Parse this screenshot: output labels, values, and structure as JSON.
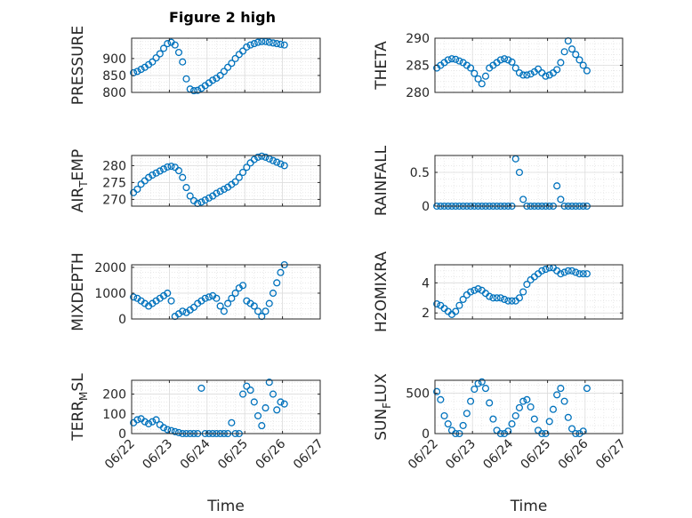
{
  "figure": {
    "title": "Figure 2 high"
  },
  "colors": {
    "marker": "#0072BD",
    "axis": "#262626",
    "grid": "#DCDCDC"
  },
  "chart_data": [
    {
      "type": "scatter",
      "id": "pressure",
      "ylabel": "PRESSURE",
      "ylim": [
        800,
        960
      ],
      "yticks": [
        800,
        850,
        900
      ],
      "ytick_labels": [
        "800",
        "850",
        "900"
      ],
      "xlim": [
        0,
        5
      ],
      "grid": true,
      "x": [
        0.05,
        0.15,
        0.25,
        0.35,
        0.45,
        0.55,
        0.65,
        0.75,
        0.85,
        0.95,
        1.05,
        1.15,
        1.25,
        1.35,
        1.45,
        1.55,
        1.65,
        1.75,
        1.85,
        1.95,
        2.05,
        2.15,
        2.25,
        2.35,
        2.45,
        2.55,
        2.65,
        2.75,
        2.85,
        2.95,
        3.05,
        3.15,
        3.25,
        3.35,
        3.45,
        3.55,
        3.65,
        3.75,
        3.85,
        3.95,
        4.05
      ],
      "y": [
        858,
        862,
        868,
        874,
        882,
        890,
        902,
        914,
        930,
        944,
        948,
        940,
        918,
        890,
        840,
        810,
        805,
        806,
        812,
        820,
        828,
        836,
        842,
        850,
        862,
        874,
        886,
        900,
        912,
        922,
        934,
        940,
        944,
        948,
        950,
        950,
        948,
        946,
        944,
        942,
        940
      ]
    },
    {
      "type": "scatter",
      "id": "theta",
      "ylabel": "THETA",
      "ylim": [
        280,
        290
      ],
      "yticks": [
        280,
        285,
        290
      ],
      "ytick_labels": [
        "280",
        "285",
        "290"
      ],
      "xlim": [
        0,
        5
      ],
      "grid": true,
      "x": [
        0.05,
        0.15,
        0.25,
        0.35,
        0.45,
        0.55,
        0.65,
        0.75,
        0.85,
        0.95,
        1.05,
        1.15,
        1.25,
        1.35,
        1.45,
        1.55,
        1.65,
        1.75,
        1.85,
        1.95,
        2.05,
        2.15,
        2.25,
        2.35,
        2.45,
        2.55,
        2.65,
        2.75,
        2.85,
        2.95,
        3.05,
        3.15,
        3.25,
        3.35,
        3.45,
        3.55,
        3.65,
        3.75,
        3.85,
        3.95,
        4.05
      ],
      "y": [
        284.5,
        285,
        285.5,
        286,
        286.2,
        286.1,
        285.8,
        285.5,
        285,
        284.5,
        283.5,
        282.5,
        281.6,
        283,
        284.5,
        285,
        285.5,
        286,
        286.2,
        286,
        285.6,
        284.5,
        283.6,
        283.2,
        283.2,
        283.4,
        283.8,
        284.3,
        283.6,
        283.0,
        283.2,
        283.6,
        284.2,
        285.5,
        287.5,
        289.5,
        288,
        287,
        286,
        285,
        284
      ]
    },
    {
      "type": "scatter",
      "id": "air-temp",
      "ylabel": "AIR_TEMP",
      "ylim": [
        268,
        283
      ],
      "yticks": [
        270,
        275,
        280
      ],
      "ytick_labels": [
        "270",
        "275",
        "280"
      ],
      "xlim": [
        0,
        5
      ],
      "grid": true,
      "x": [
        0.05,
        0.15,
        0.25,
        0.35,
        0.45,
        0.55,
        0.65,
        0.75,
        0.85,
        0.95,
        1.05,
        1.15,
        1.25,
        1.35,
        1.45,
        1.55,
        1.65,
        1.75,
        1.85,
        1.95,
        2.05,
        2.15,
        2.25,
        2.35,
        2.45,
        2.55,
        2.65,
        2.75,
        2.85,
        2.95,
        3.05,
        3.15,
        3.25,
        3.35,
        3.45,
        3.55,
        3.65,
        3.75,
        3.85,
        3.95,
        4.05
      ],
      "y": [
        272,
        273,
        274.5,
        275.5,
        276.5,
        277.2,
        277.8,
        278.4,
        279,
        279.6,
        279.8,
        279.5,
        278.5,
        276.5,
        273.5,
        271,
        269.6,
        268.8,
        269.2,
        269.8,
        270.4,
        271,
        271.8,
        272.4,
        273,
        273.6,
        274.4,
        275.2,
        276.5,
        278,
        279.5,
        280.8,
        281.8,
        282.5,
        282.8,
        282.5,
        282,
        281.5,
        281,
        280.5,
        280
      ]
    },
    {
      "type": "scatter",
      "id": "rainfall",
      "ylabel": "RAINFALL",
      "ylim": [
        0,
        0.75
      ],
      "yticks": [
        0,
        0.5
      ],
      "ytick_labels": [
        "0",
        "0.5"
      ],
      "xlim": [
        0,
        5
      ],
      "grid": true,
      "x": [
        0.05,
        0.15,
        0.25,
        0.35,
        0.45,
        0.55,
        0.65,
        0.75,
        0.85,
        0.95,
        1.05,
        1.15,
        1.25,
        1.35,
        1.45,
        1.55,
        1.65,
        1.75,
        1.85,
        1.95,
        2.05,
        2.15,
        2.25,
        2.35,
        2.45,
        2.55,
        2.65,
        2.75,
        2.85,
        2.95,
        3.05,
        3.15,
        3.25,
        3.35,
        3.45,
        3.55,
        3.65,
        3.75,
        3.85,
        3.95,
        4.05
      ],
      "y": [
        0,
        0,
        0,
        0,
        0,
        0,
        0,
        0,
        0,
        0,
        0,
        0,
        0,
        0,
        0,
        0,
        0,
        0,
        0,
        0,
        0,
        0.7,
        0.5,
        0.1,
        0,
        0,
        0,
        0,
        0,
        0,
        0,
        0,
        0.3,
        0.1,
        0,
        0,
        0,
        0,
        0,
        0,
        0
      ]
    },
    {
      "type": "scatter",
      "id": "mixdepth",
      "ylabel": "MIXDEPTH",
      "ylim": [
        0,
        2100
      ],
      "yticks": [
        0,
        1000,
        2000
      ],
      "ytick_labels": [
        "0",
        "1000",
        "2000"
      ],
      "xlim": [
        0,
        5
      ],
      "grid": true,
      "x": [
        0.05,
        0.15,
        0.25,
        0.35,
        0.45,
        0.55,
        0.65,
        0.75,
        0.85,
        0.95,
        1.05,
        1.15,
        1.25,
        1.35,
        1.45,
        1.55,
        1.65,
        1.75,
        1.85,
        1.95,
        2.05,
        2.15,
        2.25,
        2.35,
        2.45,
        2.55,
        2.65,
        2.75,
        2.85,
        2.95,
        3.05,
        3.15,
        3.25,
        3.35,
        3.45,
        3.55,
        3.65,
        3.75,
        3.85,
        3.95,
        4.05
      ],
      "y": [
        850,
        800,
        700,
        600,
        500,
        600,
        700,
        800,
        900,
        1000,
        700,
        100,
        200,
        300,
        250,
        350,
        450,
        600,
        700,
        800,
        850,
        900,
        800,
        500,
        300,
        600,
        800,
        1000,
        1200,
        1300,
        700,
        600,
        500,
        300,
        100,
        300,
        600,
        1000,
        1400,
        1800,
        2100
      ]
    },
    {
      "type": "scatter",
      "id": "h2omixra",
      "ylabel": "H2OMIXRA",
      "ylim": [
        1.6,
        5.2
      ],
      "yticks": [
        2,
        4
      ],
      "ytick_labels": [
        "2",
        "4"
      ],
      "xlim": [
        0,
        5
      ],
      "grid": true,
      "x": [
        0.05,
        0.15,
        0.25,
        0.35,
        0.45,
        0.55,
        0.65,
        0.75,
        0.85,
        0.95,
        1.05,
        1.15,
        1.25,
        1.35,
        1.45,
        1.55,
        1.65,
        1.75,
        1.85,
        1.95,
        2.05,
        2.15,
        2.25,
        2.35,
        2.45,
        2.55,
        2.65,
        2.75,
        2.85,
        2.95,
        3.05,
        3.15,
        3.25,
        3.35,
        3.45,
        3.55,
        3.65,
        3.75,
        3.85,
        3.95,
        4.05
      ],
      "y": [
        2.6,
        2.5,
        2.3,
        2.1,
        1.9,
        2.1,
        2.5,
        2.9,
        3.2,
        3.4,
        3.5,
        3.6,
        3.5,
        3.3,
        3.1,
        3.0,
        3.0,
        3.0,
        2.9,
        2.8,
        2.8,
        2.8,
        3.0,
        3.4,
        3.9,
        4.2,
        4.4,
        4.6,
        4.8,
        4.9,
        5.0,
        5.0,
        4.8,
        4.6,
        4.7,
        4.8,
        4.8,
        4.7,
        4.6,
        4.6,
        4.6
      ]
    },
    {
      "type": "scatter",
      "id": "terr-msl",
      "ylabel": "TERR_MSL",
      "ylim": [
        0,
        270
      ],
      "yticks": [
        0,
        100,
        200
      ],
      "ytick_labels": [
        "0",
        "100",
        "200"
      ],
      "xlim": [
        0,
        5
      ],
      "grid": true,
      "x": [
        0.05,
        0.15,
        0.25,
        0.35,
        0.45,
        0.55,
        0.65,
        0.75,
        0.85,
        0.95,
        1.05,
        1.15,
        1.25,
        1.35,
        1.45,
        1.55,
        1.65,
        1.75,
        1.85,
        1.95,
        2.05,
        2.15,
        2.25,
        2.35,
        2.45,
        2.55,
        2.65,
        2.75,
        2.85,
        2.95,
        3.05,
        3.15,
        3.25,
        3.35,
        3.45,
        3.55,
        3.65,
        3.75,
        3.85,
        3.95,
        4.05
      ],
      "y": [
        55,
        70,
        75,
        60,
        50,
        60,
        70,
        45,
        30,
        20,
        15,
        10,
        5,
        0,
        0,
        0,
        0,
        0,
        230,
        0,
        0,
        0,
        0,
        0,
        0,
        0,
        55,
        0,
        0,
        200,
        240,
        220,
        160,
        90,
        40,
        130,
        260,
        200,
        120,
        160,
        150
      ]
    },
    {
      "type": "scatter",
      "id": "sun-flux",
      "ylabel": "SUN_FLUX",
      "ylim": [
        0,
        660
      ],
      "yticks": [
        0,
        500
      ],
      "ytick_labels": [
        "0",
        "500"
      ],
      "xlim": [
        0,
        5
      ],
      "grid": true,
      "xticks": [
        0,
        1,
        2,
        3,
        4,
        5
      ],
      "xtick_labels": [
        "06/22",
        "06/23",
        "06/24",
        "06/25",
        "06/26",
        "06/27"
      ],
      "xlabel": "Time",
      "x": [
        0.05,
        0.15,
        0.25,
        0.35,
        0.45,
        0.55,
        0.65,
        0.75,
        0.85,
        0.95,
        1.05,
        1.15,
        1.25,
        1.35,
        1.45,
        1.55,
        1.65,
        1.75,
        1.85,
        1.95,
        2.05,
        2.15,
        2.25,
        2.35,
        2.45,
        2.55,
        2.65,
        2.75,
        2.85,
        2.95,
        3.05,
        3.15,
        3.25,
        3.35,
        3.45,
        3.55,
        3.65,
        3.75,
        3.85,
        3.95,
        4.05
      ],
      "y": [
        520,
        420,
        220,
        120,
        40,
        0,
        0,
        100,
        250,
        400,
        550,
        620,
        640,
        560,
        380,
        180,
        40,
        0,
        0,
        30,
        120,
        220,
        320,
        400,
        420,
        330,
        180,
        40,
        0,
        0,
        150,
        300,
        480,
        560,
        400,
        200,
        60,
        0,
        0,
        30,
        560
      ]
    }
  ],
  "x_axis": {
    "xticks": [
      0,
      1,
      2,
      3,
      4,
      5
    ],
    "xtick_labels": [
      "06/22",
      "06/23",
      "06/24",
      "06/25",
      "06/26",
      "06/27"
    ],
    "xlabel": "Time"
  }
}
